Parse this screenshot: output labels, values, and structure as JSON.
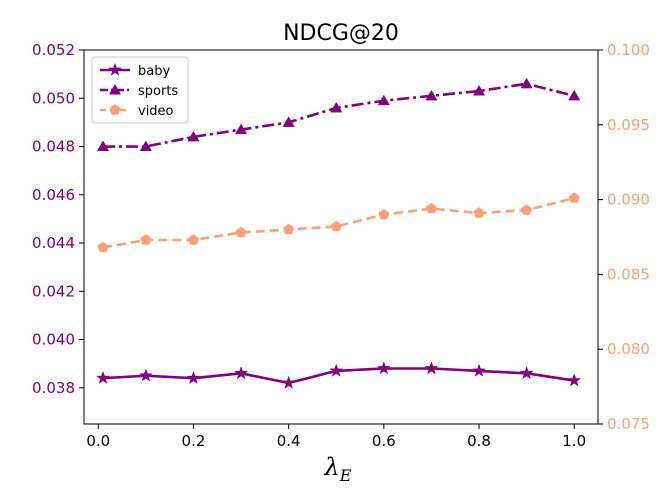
{
  "chart_data": {
    "type": "line",
    "title": "NDCG@20",
    "xlabel": "λ",
    "xlabel_subscript": "E",
    "x": [
      0.01,
      0.1,
      0.2,
      0.3,
      0.4,
      0.5,
      0.6,
      0.7,
      0.8,
      0.9,
      1.0
    ],
    "xlim": [
      -0.03,
      1.05
    ],
    "x_ticks": [
      0.0,
      0.2,
      0.4,
      0.6,
      0.8,
      1.0
    ],
    "x_tick_labels": [
      "0.0",
      "0.2",
      "0.4",
      "0.6",
      "0.8",
      "1.0"
    ],
    "left_axis": {
      "ylim": [
        0.0365,
        0.052
      ],
      "ticks": [
        0.038,
        0.04,
        0.042,
        0.044,
        0.046,
        0.048,
        0.05,
        0.052
      ],
      "tick_labels": [
        "0.038",
        "0.040",
        "0.042",
        "0.044",
        "0.046",
        "0.048",
        "0.050",
        "0.052"
      ],
      "color": "#800080"
    },
    "right_axis": {
      "ylim": [
        0.075,
        0.1
      ],
      "ticks": [
        0.075,
        0.08,
        0.085,
        0.09,
        0.095,
        0.1
      ],
      "tick_labels": [
        "0.075",
        "0.080",
        "0.085",
        "0.090",
        "0.095",
        "0.100"
      ],
      "color": "#ffa07a"
    },
    "series": [
      {
        "name": "baby",
        "axis": "left",
        "color": "#800080",
        "linestyle": "solid",
        "marker": "star",
        "values": [
          0.0384,
          0.0385,
          0.0384,
          0.0386,
          0.0382,
          0.0387,
          0.0388,
          0.0388,
          0.0387,
          0.0386,
          0.0383
        ]
      },
      {
        "name": "sports",
        "axis": "left",
        "color": "#800080",
        "linestyle": "dashdot",
        "marker": "triangle",
        "values": [
          0.048,
          0.048,
          0.0484,
          0.0487,
          0.049,
          0.0496,
          0.0499,
          0.0501,
          0.0503,
          0.0506,
          0.0501
        ]
      },
      {
        "name": "video",
        "axis": "right",
        "color": "#ffa07a",
        "linestyle": "dashed",
        "marker": "pentagon",
        "values": [
          0.0868,
          0.0873,
          0.0873,
          0.0878,
          0.088,
          0.0882,
          0.089,
          0.0894,
          0.0891,
          0.0893,
          0.0901
        ]
      }
    ],
    "legend": {
      "position": "top-left",
      "entries": [
        "baby",
        "sports",
        "video"
      ]
    }
  }
}
